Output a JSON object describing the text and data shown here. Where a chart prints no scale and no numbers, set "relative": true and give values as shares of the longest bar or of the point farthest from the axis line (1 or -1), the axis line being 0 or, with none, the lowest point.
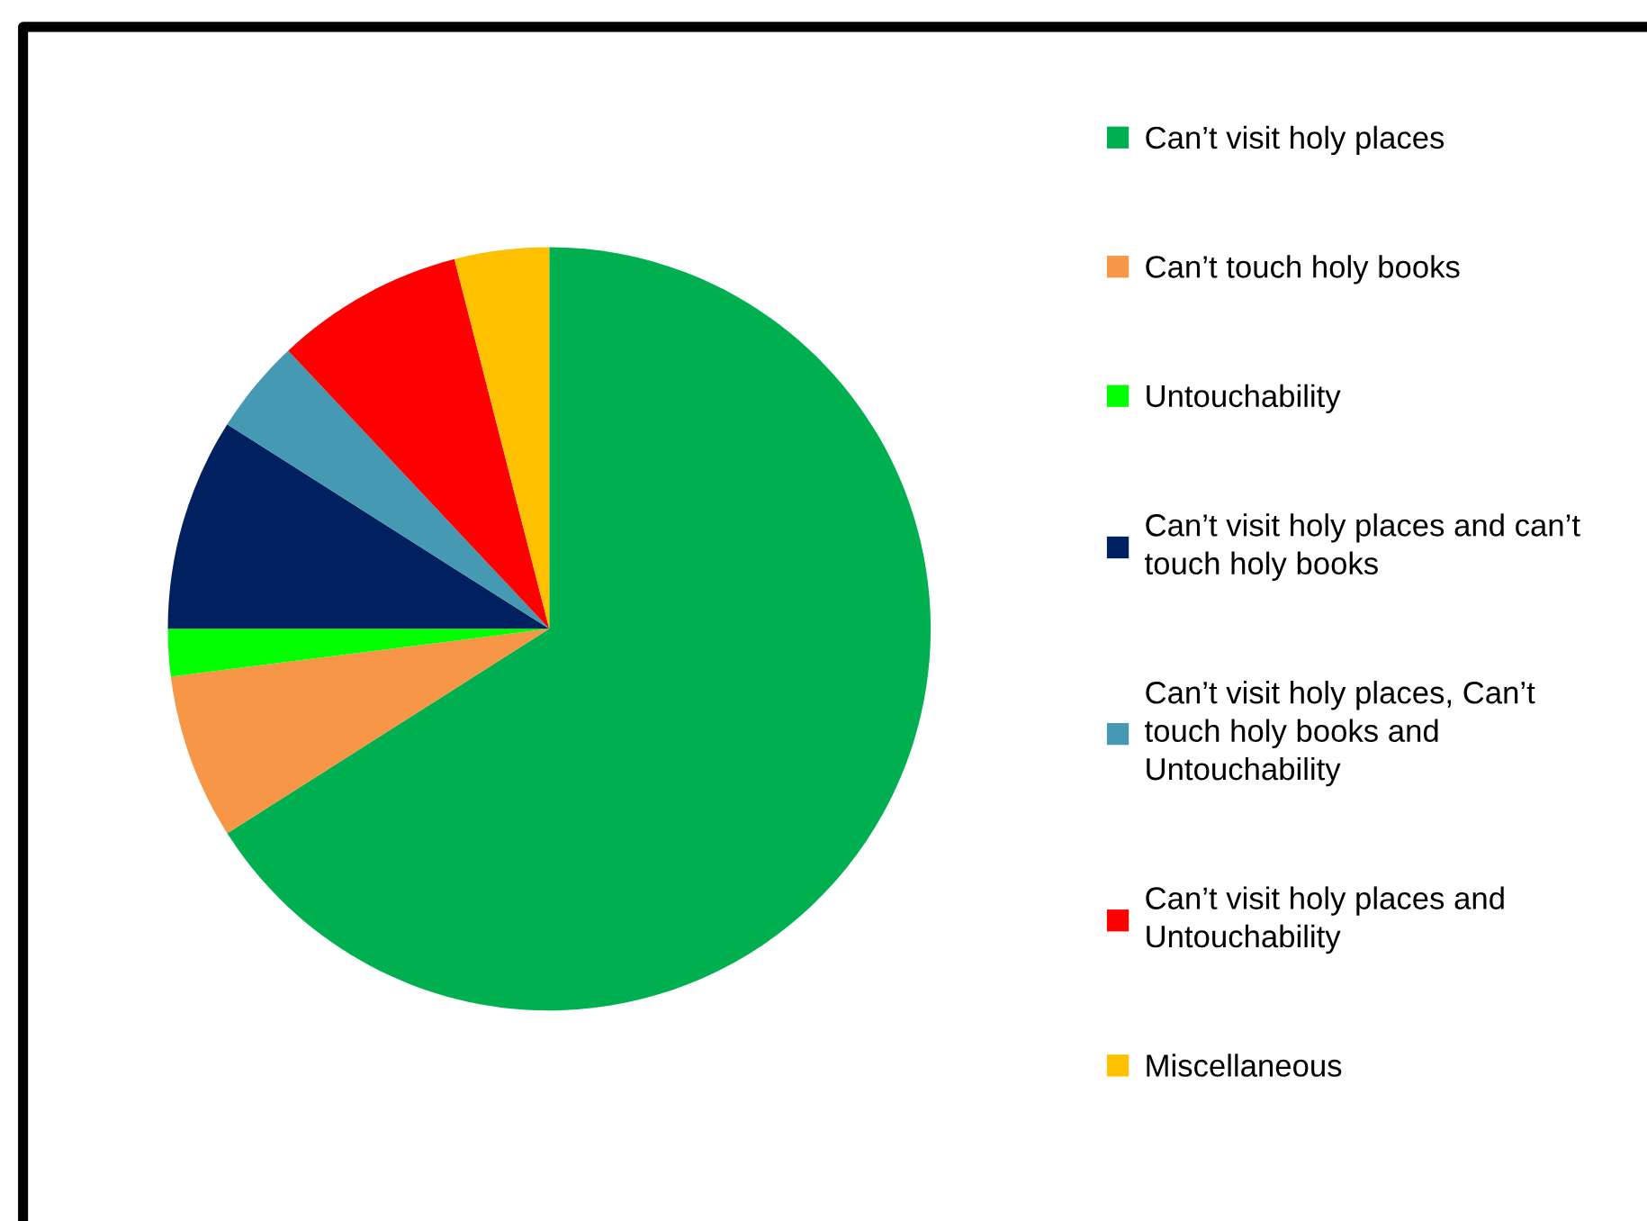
{
  "chart_data": {
    "type": "pie",
    "relative": true,
    "legend": "right",
    "categories": [
      "Can’t visit holy places",
      "Can’t touch holy books",
      "Untouchability",
      "Can’t visit holy places and can’t touch holy books",
      "Can’t visit holy places, Can’t touch holy books and Untouchability",
      "Can’t visit holy places and Untouchability",
      "Miscellaneous"
    ],
    "values": [
      66,
      7,
      2,
      9,
      4,
      8,
      4
    ],
    "colors": [
      "#00b050",
      "#f79646",
      "#00ff00",
      "#002060",
      "#4599b2",
      "#ff0000",
      "#ffc000"
    ]
  }
}
